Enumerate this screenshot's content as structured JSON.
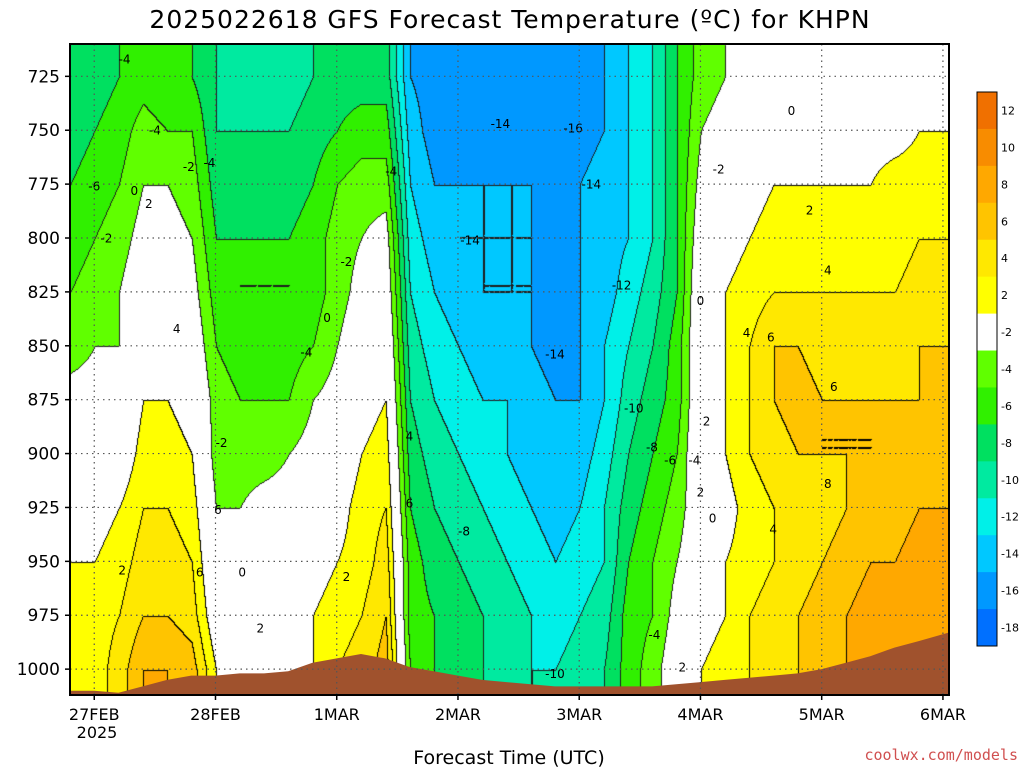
{
  "chart_data": {
    "type": "heatmap",
    "title": "2025022618 GFS Forecast Temperature (ºC) for KHPN",
    "xlabel": "Forecast Time (UTC)",
    "ylabel": "",
    "credit": "coolwx.com/models",
    "x_ticks": [
      "27FEB",
      "28FEB",
      "1MAR",
      "2MAR",
      "3MAR",
      "4MAR",
      "5MAR",
      "6MAR"
    ],
    "x_year": "2025",
    "x_range_days": [
      -0.2,
      7.05
    ],
    "y_ticks": [
      "725",
      "750",
      "775",
      "800",
      "825",
      "850",
      "875",
      "900",
      "925",
      "950",
      "975",
      "1000"
    ],
    "y_range_hpa": [
      1012,
      710
    ],
    "grid": "dotted",
    "colorbar": {
      "levels": [
        "12",
        "10",
        "8",
        "6",
        "4",
        "2",
        "-2",
        "-4",
        "-6",
        "-8",
        "-10",
        "-12",
        "-14",
        "-16",
        "-18"
      ],
      "colors": [
        "#f07000",
        "#f88c00",
        "#ffa800",
        "#ffc400",
        "#ffe800",
        "#ffff00",
        "#ffffff",
        "#60ff00",
        "#30f000",
        "#00e060",
        "#00eaa0",
        "#00f0e8",
        "#00c8ff",
        "#0098ff",
        "#0070ff"
      ],
      "lowest_color": "#0050f0"
    },
    "columns_time_days": [
      -0.2,
      0.0,
      0.2,
      0.4,
      0.6,
      0.8,
      1.0,
      1.2,
      1.4,
      1.6,
      1.8,
      2.0,
      2.2,
      2.4,
      2.6,
      2.8,
      3.0,
      3.2,
      3.4,
      3.6,
      3.8,
      4.0,
      4.2,
      4.4,
      4.6,
      4.8,
      5.0,
      5.2,
      5.4,
      5.6,
      5.8,
      6.0,
      6.2,
      6.4,
      6.6,
      6.8,
      7.05
    ],
    "profile_levels_hpa": [
      1000,
      975,
      950,
      925,
      900,
      875,
      850,
      825,
      800,
      775,
      750,
      725
    ],
    "temperature_c": [
      [
        3,
        4,
        2,
        1,
        0,
        -1,
        -3,
        -4,
        -5,
        -6,
        -7,
        -8
      ],
      [
        3,
        3,
        2,
        1,
        0,
        -1,
        -2,
        -3,
        -4,
        -5,
        -6,
        -7
      ],
      [
        5,
        4,
        3,
        2,
        0,
        -1,
        -2,
        -2,
        -3,
        -4,
        -5,
        -6
      ],
      [
        8,
        6,
        5,
        4,
        3,
        2,
        1,
        0,
        -1,
        -2,
        -3,
        -5
      ],
      [
        8,
        6,
        5,
        4,
        3,
        2,
        1,
        0,
        -1,
        -2,
        -4,
        -6
      ],
      [
        7,
        5,
        4,
        3,
        2,
        1,
        0,
        -1,
        -2,
        -3,
        -4,
        -6
      ],
      [
        2,
        0,
        -1,
        -2,
        -3,
        -3,
        -4,
        -5,
        -6,
        -7,
        -8,
        -8
      ],
      [
        0,
        0,
        -1,
        -2,
        -3,
        -4,
        -5,
        -6,
        -6,
        -7,
        -8,
        -9
      ],
      [
        -1,
        0,
        1,
        -1,
        -3,
        -4,
        -5,
        -6,
        -6,
        -7,
        -8,
        -9
      ],
      [
        1,
        1,
        0,
        -1,
        -2,
        -4,
        -5,
        -6,
        -6,
        -7,
        -8,
        -9
      ],
      [
        2,
        2,
        1,
        0,
        -1,
        -2,
        -4,
        -5,
        -5,
        -6,
        -7,
        -8
      ],
      [
        4,
        3,
        2,
        1,
        0,
        -1,
        -2,
        -3,
        -3,
        -4,
        -6,
        -7
      ],
      [
        5,
        4,
        3,
        3,
        2,
        1,
        0,
        -1,
        -2,
        -3,
        -5,
        -7
      ],
      [
        7,
        6,
        5,
        4,
        3,
        2,
        1,
        0,
        -1,
        -3,
        -5,
        -7
      ],
      [
        -4,
        -5,
        -5,
        -6,
        -7,
        -8,
        -9,
        -10,
        -11,
        -12,
        -13,
        -14
      ],
      [
        -6,
        -6,
        -7,
        -8,
        -9,
        -10,
        -11,
        -12,
        -13,
        -14,
        -15,
        -15
      ],
      [
        -7,
        -7,
        -8,
        -9,
        -10,
        -11,
        -12,
        -13,
        -14,
        -14,
        -15,
        -16
      ],
      [
        -8,
        -8,
        -9,
        -10,
        -11,
        -12,
        -13,
        -14,
        -14,
        -14,
        -15,
        -16
      ],
      [
        -9,
        -9,
        -10,
        -11,
        -12,
        -12,
        -13,
        -14,
        -14,
        -14,
        -15,
        -16
      ],
      [
        -10,
        -10,
        -11,
        -12,
        -13,
        -13,
        -14,
        -14,
        -14,
        -14,
        -15,
        -16
      ],
      [
        -10,
        -11,
        -12,
        -13,
        -14,
        -14,
        -15,
        -15,
        -15,
        -15,
        -16,
        -16
      ],
      [
        -9,
        -10,
        -11,
        -12,
        -13,
        -14,
        -14,
        -14,
        -14,
        -14,
        -15,
        -15
      ],
      [
        -8,
        -9,
        -10,
        -10,
        -11,
        -12,
        -12,
        -13,
        -13,
        -13,
        -14,
        -14
      ],
      [
        -5,
        -5,
        -6,
        -7,
        -8,
        -9,
        -10,
        -11,
        -12,
        -12,
        -12,
        -12
      ],
      [
        -3,
        -4,
        -4,
        -5,
        -6,
        -7,
        -8,
        -9,
        -10,
        -10,
        -10,
        -10
      ],
      [
        0,
        -1,
        -2,
        -3,
        -4,
        -5,
        -5,
        -6,
        -6,
        -6,
        -6,
        -6
      ],
      [
        2,
        1,
        0,
        0,
        1,
        1,
        1,
        1,
        0,
        -1,
        -2,
        -3
      ],
      [
        3,
        2,
        2,
        1,
        2,
        2,
        2,
        2,
        1,
        0,
        -1,
        -2
      ],
      [
        4,
        4,
        3,
        3,
        4,
        4,
        4,
        3,
        2,
        1,
        0,
        -1
      ],
      [
        5,
        5,
        4,
        4,
        5,
        6,
        6,
        4,
        3,
        2,
        1,
        0
      ],
      [
        6,
        6,
        5,
        5,
        6,
        7,
        6,
        4,
        3,
        2,
        1,
        0
      ],
      [
        7,
        7,
        6,
        5,
        6,
        6,
        5,
        4,
        3,
        2,
        1,
        0
      ],
      [
        8,
        8,
        7,
        6,
        6,
        6,
        5,
        4,
        3,
        2,
        1,
        0
      ],
      [
        9,
        9,
        8,
        7,
        6,
        6,
        5,
        4,
        3,
        2,
        1,
        0
      ],
      [
        9,
        9,
        8,
        7,
        7,
        6,
        5,
        4,
        3,
        3,
        1,
        0
      ],
      [
        10,
        9,
        9,
        8,
        7,
        6,
        6,
        5,
        4,
        3,
        2,
        1
      ],
      [
        10,
        10,
        9,
        8,
        7,
        7,
        6,
        5,
        4,
        3,
        2,
        1
      ]
    ],
    "surface_pressure_hpa": [
      1010,
      1010,
      1011,
      1008,
      1005,
      1003,
      1003,
      1002,
      1002,
      1001,
      997,
      995,
      993,
      995,
      999,
      1001,
      1003,
      1005,
      1006,
      1007,
      1008,
      1008,
      1008,
      1008,
      1008,
      1007,
      1006,
      1005,
      1004,
      1003,
      1002,
      1000,
      997,
      994,
      990,
      987,
      983
    ],
    "contour_labels": [
      {
        "x": 0.25,
        "p": 719,
        "t": "-4"
      },
      {
        "x": 0.5,
        "p": 752,
        "t": "-4"
      },
      {
        "x": 0.78,
        "p": 769,
        "t": "-2"
      },
      {
        "x": 0.95,
        "p": 767,
        "t": "-4"
      },
      {
        "x": 0.0,
        "p": 778,
        "t": "-6"
      },
      {
        "x": 0.33,
        "p": 780,
        "t": "0"
      },
      {
        "x": 0.45,
        "p": 786,
        "t": "2"
      },
      {
        "x": 0.1,
        "p": 802,
        "t": "-2"
      },
      {
        "x": 2.45,
        "p": 771,
        "t": "-4"
      },
      {
        "x": 2.08,
        "p": 813,
        "t": "-2"
      },
      {
        "x": 1.05,
        "p": 897,
        "t": "-2"
      },
      {
        "x": 1.75,
        "p": 855,
        "t": "-4"
      },
      {
        "x": 1.92,
        "p": 839,
        "t": "0"
      },
      {
        "x": 0.68,
        "p": 844,
        "t": "4"
      },
      {
        "x": 1.02,
        "p": 928,
        "t": "6"
      },
      {
        "x": 0.23,
        "p": 956,
        "t": "2"
      },
      {
        "x": 0.87,
        "p": 957,
        "t": "6"
      },
      {
        "x": 1.22,
        "p": 957,
        "t": "0"
      },
      {
        "x": 1.37,
        "p": 983,
        "t": "2"
      },
      {
        "x": 2.6,
        "p": 894,
        "t": "4"
      },
      {
        "x": 2.6,
        "p": 925,
        "t": "6"
      },
      {
        "x": 2.08,
        "p": 959,
        "t": "2"
      },
      {
        "x": 3.35,
        "p": 749,
        "t": "-14"
      },
      {
        "x": 3.95,
        "p": 751,
        "t": "-16"
      },
      {
        "x": 4.1,
        "p": 777,
        "t": "-14"
      },
      {
        "x": 3.1,
        "p": 803,
        "t": "-14"
      },
      {
        "x": 3.05,
        "p": 938,
        "t": "-8"
      },
      {
        "x": 3.8,
        "p": 856,
        "t": "-14"
      },
      {
        "x": 4.35,
        "p": 824,
        "t": "-12"
      },
      {
        "x": 4.45,
        "p": 881,
        "t": "-10"
      },
      {
        "x": 4.6,
        "p": 899,
        "t": "-8"
      },
      {
        "x": 4.75,
        "p": 905,
        "t": "-6"
      },
      {
        "x": 4.95,
        "p": 905,
        "t": "-4"
      },
      {
        "x": 4.62,
        "p": 986,
        "t": "-4"
      },
      {
        "x": 3.8,
        "p": 1004,
        "t": "-10"
      },
      {
        "x": 5.15,
        "p": 770,
        "t": "-2"
      },
      {
        "x": 5.75,
        "p": 743,
        "t": "0"
      },
      {
        "x": 5.9,
        "p": 789,
        "t": "2"
      },
      {
        "x": 6.05,
        "p": 817,
        "t": "4"
      },
      {
        "x": 5.58,
        "p": 848,
        "t": "6"
      },
      {
        "x": 5.38,
        "p": 846,
        "t": "4"
      },
      {
        "x": 5.0,
        "p": 831,
        "t": "0"
      },
      {
        "x": 5.05,
        "p": 887,
        "t": "2"
      },
      {
        "x": 5.0,
        "p": 920,
        "t": "2"
      },
      {
        "x": 5.1,
        "p": 932,
        "t": "0"
      },
      {
        "x": 5.6,
        "p": 937,
        "t": "4"
      },
      {
        "x": 6.1,
        "p": 871,
        "t": "6"
      },
      {
        "x": 6.05,
        "p": 916,
        "t": "8"
      },
      {
        "x": 4.85,
        "p": 1001,
        "t": "2"
      }
    ]
  }
}
